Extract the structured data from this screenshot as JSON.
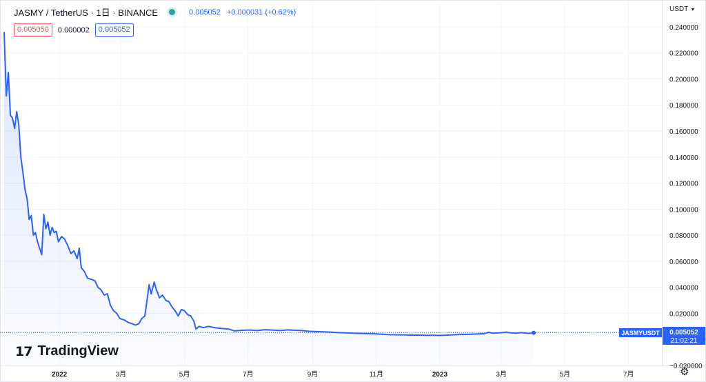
{
  "header": {
    "symbol": "JASMY / TetherUS · 1日 · BINANCE",
    "last_price": "0.005052",
    "change": "+0.000031 (+0.62%)"
  },
  "orderbox": {
    "bid": "0.005050",
    "spread": "0.000002",
    "ask": "0.005052"
  },
  "axis": {
    "unit_label": "USDT",
    "price_label_symbol": "JASMYUSDT",
    "price_label_value": "0.005052",
    "countdown": "21:02:21"
  },
  "logo": {
    "text": "TradingView"
  },
  "colors": {
    "line": "#2962ff",
    "fill": "#e8edfb",
    "grid": "#f0f3fa",
    "positive": "#26a69a",
    "negative": "#ef5350"
  },
  "icons": {
    "status": "market-open-dot",
    "settings": "gear-icon",
    "logo": "tradingview-logo-icon"
  },
  "chart_data": {
    "type": "area",
    "ylabel": "USDT",
    "ylim": [
      -0.02,
      0.25
    ],
    "yticks": [
      "0.240000",
      "0.220000",
      "0.200000",
      "0.180000",
      "0.160000",
      "0.140000",
      "0.120000",
      "0.100000",
      "0.080000",
      "0.060000",
      "0.040000",
      "0.020000",
      "−0.020000"
    ],
    "ytick_values": [
      0.24,
      0.22,
      0.2,
      0.18,
      0.16,
      0.14,
      0.12,
      0.1,
      0.08,
      0.06,
      0.04,
      0.02,
      -0.02
    ],
    "xticks": [
      {
        "label": "2022",
        "date": "2022-01-01",
        "bold": true
      },
      {
        "label": "3月",
        "date": "2022-03-01",
        "bold": false
      },
      {
        "label": "5月",
        "date": "2022-05-01",
        "bold": false
      },
      {
        "label": "7月",
        "date": "2022-07-01",
        "bold": false
      },
      {
        "label": "9月",
        "date": "2022-09-01",
        "bold": false
      },
      {
        "label": "11月",
        "date": "2022-11-01",
        "bold": false
      },
      {
        "label": "2023",
        "date": "2023-01-01",
        "bold": true
      },
      {
        "label": "3月",
        "date": "2023-03-01",
        "bold": false
      },
      {
        "label": "5月",
        "date": "2023-05-01",
        "bold": false
      },
      {
        "label": "7月",
        "date": "2023-07-01",
        "bold": false
      }
    ],
    "xlim": [
      "2021-11-05",
      "2023-08-02"
    ],
    "grid": true,
    "series": [
      {
        "points": [
          [
            "2021-11-09",
            0.236
          ],
          [
            "2021-11-11",
            0.187
          ],
          [
            "2021-11-13",
            0.205
          ],
          [
            "2021-11-15",
            0.172
          ],
          [
            "2021-11-17",
            0.17
          ],
          [
            "2021-11-19",
            0.162
          ],
          [
            "2021-11-21",
            0.175
          ],
          [
            "2021-11-23",
            0.165
          ],
          [
            "2021-11-25",
            0.14
          ],
          [
            "2021-11-27",
            0.128
          ],
          [
            "2021-11-29",
            0.115
          ],
          [
            "2021-12-01",
            0.108
          ],
          [
            "2021-12-03",
            0.092
          ],
          [
            "2021-12-05",
            0.095
          ],
          [
            "2021-12-07",
            0.08
          ],
          [
            "2021-12-09",
            0.082
          ],
          [
            "2021-12-11",
            0.075
          ],
          [
            "2021-12-13",
            0.07
          ],
          [
            "2021-12-15",
            0.065
          ],
          [
            "2021-12-17",
            0.096
          ],
          [
            "2021-12-19",
            0.085
          ],
          [
            "2021-12-21",
            0.09
          ],
          [
            "2021-12-23",
            0.08
          ],
          [
            "2021-12-25",
            0.086
          ],
          [
            "2021-12-27",
            0.082
          ],
          [
            "2021-12-29",
            0.083
          ],
          [
            "2021-12-31",
            0.075
          ],
          [
            "2022-01-03",
            0.079
          ],
          [
            "2022-01-06",
            0.077
          ],
          [
            "2022-01-09",
            0.072
          ],
          [
            "2022-01-12",
            0.066
          ],
          [
            "2022-01-15",
            0.068
          ],
          [
            "2022-01-18",
            0.062
          ],
          [
            "2022-01-20",
            0.07
          ],
          [
            "2022-01-22",
            0.055
          ],
          [
            "2022-01-25",
            0.052
          ],
          [
            "2022-01-28",
            0.047
          ],
          [
            "2022-02-01",
            0.046
          ],
          [
            "2022-02-04",
            0.045
          ],
          [
            "2022-02-07",
            0.04
          ],
          [
            "2022-02-10",
            0.038
          ],
          [
            "2022-02-13",
            0.034
          ],
          [
            "2022-02-16",
            0.035
          ],
          [
            "2022-02-19",
            0.026
          ],
          [
            "2022-02-22",
            0.022
          ],
          [
            "2022-02-25",
            0.02
          ],
          [
            "2022-02-28",
            0.016
          ],
          [
            "2022-03-04",
            0.015
          ],
          [
            "2022-03-08",
            0.013
          ],
          [
            "2022-03-12",
            0.012
          ],
          [
            "2022-03-15",
            0.011
          ],
          [
            "2022-03-18",
            0.012
          ],
          [
            "2022-03-21",
            0.016
          ],
          [
            "2022-03-24",
            0.018
          ],
          [
            "2022-03-26",
            0.03
          ],
          [
            "2022-03-28",
            0.042
          ],
          [
            "2022-03-30",
            0.035
          ],
          [
            "2022-04-02",
            0.044
          ],
          [
            "2022-04-04",
            0.038
          ],
          [
            "2022-04-07",
            0.032
          ],
          [
            "2022-04-10",
            0.034
          ],
          [
            "2022-04-13",
            0.03
          ],
          [
            "2022-04-16",
            0.029
          ],
          [
            "2022-04-19",
            0.025
          ],
          [
            "2022-04-22",
            0.022
          ],
          [
            "2022-04-25",
            0.018
          ],
          [
            "2022-04-28",
            0.023
          ],
          [
            "2022-05-01",
            0.022
          ],
          [
            "2022-05-04",
            0.019
          ],
          [
            "2022-05-07",
            0.018
          ],
          [
            "2022-05-10",
            0.014
          ],
          [
            "2022-05-12",
            0.008
          ],
          [
            "2022-05-15",
            0.01
          ],
          [
            "2022-05-19",
            0.009
          ],
          [
            "2022-05-24",
            0.01
          ],
          [
            "2022-05-30",
            0.009
          ],
          [
            "2022-06-05",
            0.0085
          ],
          [
            "2022-06-12",
            0.008
          ],
          [
            "2022-06-18",
            0.0065
          ],
          [
            "2022-06-25",
            0.007
          ],
          [
            "2022-07-03",
            0.0072
          ],
          [
            "2022-07-10",
            0.0068
          ],
          [
            "2022-07-17",
            0.0075
          ],
          [
            "2022-07-24",
            0.0072
          ],
          [
            "2022-08-01",
            0.0068
          ],
          [
            "2022-08-08",
            0.0073
          ],
          [
            "2022-08-15",
            0.007
          ],
          [
            "2022-08-22",
            0.0068
          ],
          [
            "2022-08-29",
            0.0062
          ],
          [
            "2022-09-05",
            0.006
          ],
          [
            "2022-09-12",
            0.0058
          ],
          [
            "2022-09-19",
            0.0055
          ],
          [
            "2022-09-26",
            0.0052
          ],
          [
            "2022-10-03",
            0.005
          ],
          [
            "2022-10-10",
            0.0048
          ],
          [
            "2022-10-17",
            0.0046
          ],
          [
            "2022-10-24",
            0.0045
          ],
          [
            "2022-10-31",
            0.0043
          ],
          [
            "2022-11-07",
            0.004
          ],
          [
            "2022-11-14",
            0.0036
          ],
          [
            "2022-11-21",
            0.0035
          ],
          [
            "2022-11-28",
            0.0034
          ],
          [
            "2022-12-05",
            0.0033
          ],
          [
            "2022-12-12",
            0.0033
          ],
          [
            "2022-12-19",
            0.0032
          ],
          [
            "2022-12-26",
            0.0032
          ],
          [
            "2023-01-02",
            0.0031
          ],
          [
            "2023-01-09",
            0.0033
          ],
          [
            "2023-01-16",
            0.0036
          ],
          [
            "2023-01-23",
            0.0038
          ],
          [
            "2023-01-30",
            0.004
          ],
          [
            "2023-02-06",
            0.0042
          ],
          [
            "2023-02-13",
            0.0045
          ],
          [
            "2023-02-17",
            0.0055
          ],
          [
            "2023-02-20",
            0.0048
          ],
          [
            "2023-02-27",
            0.005
          ],
          [
            "2023-03-06",
            0.0056
          ],
          [
            "2023-03-10",
            0.005
          ],
          [
            "2023-03-15",
            0.0048
          ],
          [
            "2023-03-20",
            0.0052
          ],
          [
            "2023-03-27",
            0.0046
          ],
          [
            "2023-04-01",
            0.00505
          ]
        ]
      }
    ]
  }
}
